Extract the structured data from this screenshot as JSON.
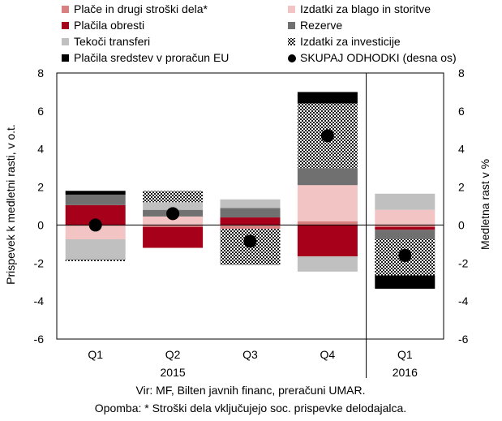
{
  "chart_data": {
    "type": "bar",
    "stacked": true,
    "categories": [
      "Q1",
      "Q2",
      "Q3",
      "Q4",
      "Q1"
    ],
    "year_labels": [
      "2015",
      "2016"
    ],
    "ylabel_left": "Prispevek k medletni rasti, v o.t.",
    "ylabel_right": "Medletna rast v %",
    "ylim": [
      -6,
      8
    ],
    "yticks": [
      -6,
      -4,
      -2,
      0,
      2,
      4,
      6,
      8
    ],
    "legend_position": "top",
    "grid": false,
    "series": [
      {
        "name": "Plače in drugi stroški dela*",
        "color": "#d98080",
        "pattern": "solid",
        "values": [
          -0.05,
          -0.1,
          -0.2,
          0.2,
          -0.1
        ]
      },
      {
        "name": "Izdatki za blago in storitve",
        "color": "#f2c4c4",
        "pattern": "solid",
        "values": [
          -0.7,
          0.45,
          0.0,
          1.9,
          0.8
        ]
      },
      {
        "name": "Plačila obresti",
        "color": "#a6001a",
        "pattern": "solid",
        "values": [
          1.05,
          -1.1,
          0.4,
          -1.65,
          -0.15
        ]
      },
      {
        "name": "Rezerve",
        "color": "#707070",
        "pattern": "solid",
        "values": [
          0.55,
          0.35,
          0.5,
          0.9,
          -0.5
        ]
      },
      {
        "name": "Tekoči transferi",
        "color": "#c0c0c0",
        "pattern": "solid",
        "values": [
          -1.05,
          0.4,
          0.45,
          -0.8,
          0.85
        ]
      },
      {
        "name": "Izdatki za investicije",
        "color": "#2a2a2a",
        "pattern": "hatch",
        "values": [
          -0.1,
          0.6,
          -1.9,
          3.4,
          -1.9
        ]
      },
      {
        "name": "Plačila sredstev v proračun EU",
        "color": "#000000",
        "pattern": "solid",
        "values": [
          0.2,
          0.0,
          0.0,
          0.6,
          -0.7
        ]
      }
    ],
    "total": {
      "name": "SKUPAJ ODHODKI (desna os)",
      "color": "#000000",
      "values": [
        0.0,
        0.6,
        -0.85,
        4.7,
        -1.6
      ]
    }
  },
  "notes": {
    "source": "Vir: MF, Bilten javnih financ, preračuni UMAR.",
    "footnote": "Opomba: * Stroški dela vključujejo soc. prispevke delodajalca."
  }
}
